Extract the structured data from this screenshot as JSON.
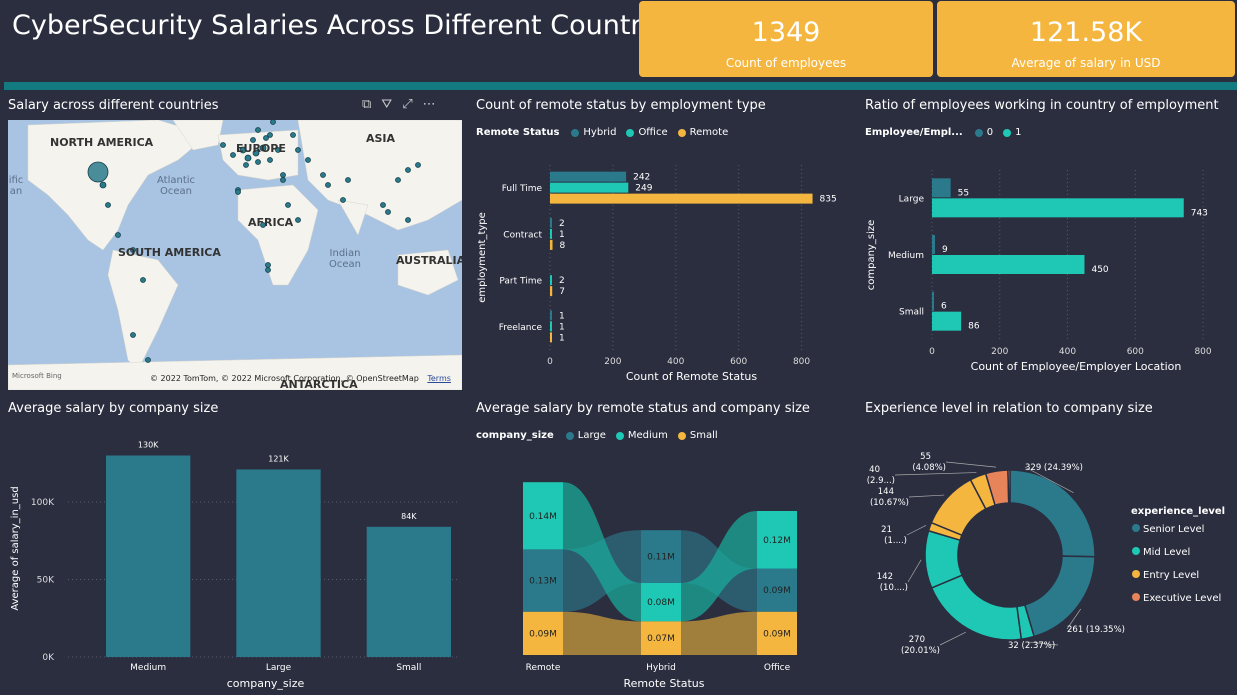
{
  "header": {
    "title": "CyberSecurity Salaries Across Different Countries",
    "kpi1": {
      "value": "1349",
      "label": "Count of employees"
    },
    "kpi2": {
      "value": "121.58K",
      "label": "Average of salary in USD"
    }
  },
  "colors": {
    "teal_dark": "#2a7a8c",
    "teal": "#1ec8b4",
    "yellow": "#f4b63f",
    "orange": "#e8845a"
  },
  "map": {
    "title": "Salary across different countries",
    "labels": {
      "north_america": "NORTH AMERICA",
      "europe": "EUROPE",
      "asia": "ASIA",
      "africa": "AFRICA",
      "south_america": "SOUTH AMERICA",
      "australia": "AUSTRALIA",
      "antarctica": "ANTARCTICA",
      "atlantic": "Atlantic Ocean",
      "indian": "Indian Ocean",
      "pacific": "ific an"
    },
    "attribution": "© 2022 TomTom, © 2022 Microsoft Corporation, © OpenStreetMap",
    "terms": "Terms",
    "bing": "Microsoft Bing"
  },
  "remote_chart": {
    "title": "Count of remote status by employment type",
    "legend_title": "Remote Status"
  },
  "ratio_chart": {
    "title": "Ratio of employees working in country of employment",
    "legend_title": "Employee/Empl..."
  },
  "avg_size_chart": {
    "title": "Average salary by company size"
  },
  "sankey_chart": {
    "title": "Average salary by remote status and company size",
    "legend_title": "company_size"
  },
  "donut_chart": {
    "title": "Experience level in relation to company size",
    "legend_title": "experience_level"
  },
  "chart_data": [
    {
      "id": "remote_by_employment",
      "type": "bar",
      "orientation": "horizontal",
      "categories": [
        "Full Time",
        "Contract",
        "Part Time",
        "Freelance"
      ],
      "series": [
        {
          "name": "Hybrid",
          "values": [
            242,
            2,
            0,
            1
          ],
          "labels": [
            "242",
            "2",
            "",
            "1"
          ]
        },
        {
          "name": "Office",
          "values": [
            249,
            1,
            2,
            1
          ],
          "labels": [
            "249",
            "1",
            "2",
            "1"
          ]
        },
        {
          "name": "Remote",
          "values": [
            835,
            8,
            7,
            1
          ],
          "labels": [
            "835",
            "8",
            "7",
            "1"
          ]
        }
      ],
      "xlabel": "Count of Remote Status",
      "ylabel": "employment_type",
      "xlim": [
        0,
        900
      ],
      "xticks": [
        0,
        200,
        400,
        600,
        800
      ],
      "legend": "top-left"
    },
    {
      "id": "ratio_country",
      "type": "bar",
      "orientation": "horizontal",
      "categories": [
        "Large",
        "Medium",
        "Small"
      ],
      "series": [
        {
          "name": "0",
          "values": [
            55,
            9,
            6
          ]
        },
        {
          "name": "1",
          "values": [
            743,
            450,
            86
          ]
        }
      ],
      "xlabel": "Count of Employee/Employer Location",
      "ylabel": "company_size",
      "xlim": [
        0,
        850
      ],
      "xticks": [
        0,
        200,
        400,
        600,
        800
      ],
      "legend": "top-left"
    },
    {
      "id": "avg_salary_company_size",
      "type": "bar",
      "categories": [
        "Medium",
        "Large",
        "Small"
      ],
      "values": [
        130,
        121,
        84
      ],
      "labels": [
        "130K",
        "121K",
        "84K"
      ],
      "xlabel": "company_size",
      "ylabel": "Average of salary_in_usd",
      "ylim": [
        0,
        140
      ],
      "yticks": [
        {
          "v": 0,
          "t": "0K"
        },
        {
          "v": 50,
          "t": "50K"
        },
        {
          "v": 100,
          "t": "100K"
        }
      ]
    },
    {
      "id": "sankey_remote_size",
      "type": "area",
      "categories": [
        "Remote",
        "Hybrid",
        "Office"
      ],
      "series": [
        {
          "name": "Large",
          "values": [
            0.13,
            0.11,
            0.09
          ],
          "labels": [
            "0.13M",
            "0.11M",
            "0.09M"
          ]
        },
        {
          "name": "Medium",
          "values": [
            0.14,
            0.08,
            0.12
          ],
          "labels": [
            "0.14M",
            "0.08M",
            "0.12M"
          ]
        },
        {
          "name": "Small",
          "values": [
            0.09,
            0.07,
            0.09
          ],
          "labels": [
            "0.09M",
            "0.07M",
            "0.09M"
          ]
        }
      ],
      "xlabel": "Remote Status",
      "legend": "top-left"
    },
    {
      "id": "experience_donut",
      "type": "pie",
      "slices": [
        {
          "name": "Senior Level",
          "value": 329,
          "label": "329 (24.39%)"
        },
        {
          "name": "Senior Level",
          "value": 261,
          "label": "261 (19.35%)"
        },
        {
          "name": "Mid Level",
          "value": 32,
          "label": "32 (2.37%)"
        },
        {
          "name": "Mid Level",
          "value": 270,
          "label": "270 (20.01%)"
        },
        {
          "name": "Mid Level",
          "value": 142,
          "label": "142 (10....)"
        },
        {
          "name": "Entry Level",
          "value": 21,
          "label": "21 (1....)"
        },
        {
          "name": "Entry Level",
          "value": 144,
          "label": "144 (10.67%)"
        },
        {
          "name": "Entry Level",
          "value": 40,
          "label": "40 (2.9...)"
        },
        {
          "name": "Executive Level",
          "value": 55,
          "label": "55 (4.08%)"
        },
        {
          "name": "Executive Level",
          "value": 5,
          "label": ""
        }
      ],
      "legend_entries": [
        "Senior Level",
        "Mid Level",
        "Entry Level",
        "Executive Level"
      ],
      "legend": "right"
    }
  ]
}
